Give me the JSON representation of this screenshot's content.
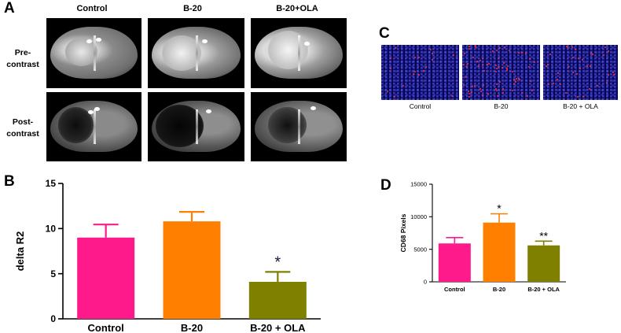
{
  "panel_a": {
    "letter": "A",
    "columns": [
      "Control",
      "B-20",
      "B-20+OLA"
    ],
    "rows": [
      {
        "line1": "Pre-",
        "line2": "contrast"
      },
      {
        "line1": "Post-",
        "line2": "contrast"
      }
    ]
  },
  "panel_c": {
    "letter": "C",
    "labels": [
      "Control",
      "B-20",
      "B-20 + OLA"
    ]
  },
  "colors": {
    "control": "#ff1a8c",
    "b20": "#ff8000",
    "b20_ola": "#808000"
  },
  "chart_data": [
    {
      "panel": "B",
      "type": "bar",
      "categories": [
        "Control",
        "B-20",
        "B-20 + OLA"
      ],
      "values": [
        9.0,
        10.8,
        4.1
      ],
      "errors": [
        1.45,
        1.05,
        1.1
      ],
      "annotations": [
        "",
        "",
        "*"
      ],
      "ylabel": "delta R2",
      "ylim": [
        0,
        15
      ],
      "yticks": [
        0,
        5,
        10,
        15
      ]
    },
    {
      "panel": "D",
      "type": "bar",
      "categories": [
        "Control",
        "B-20",
        "B-20 + OLA"
      ],
      "values": [
        5900,
        9100,
        5600
      ],
      "errors": [
        900,
        1350,
        650
      ],
      "annotations": [
        "",
        "*",
        "**"
      ],
      "ylabel": "CD68 Pixels",
      "ylim": [
        0,
        15000
      ],
      "yticks": [
        0,
        5000,
        10000,
        15000
      ]
    }
  ]
}
